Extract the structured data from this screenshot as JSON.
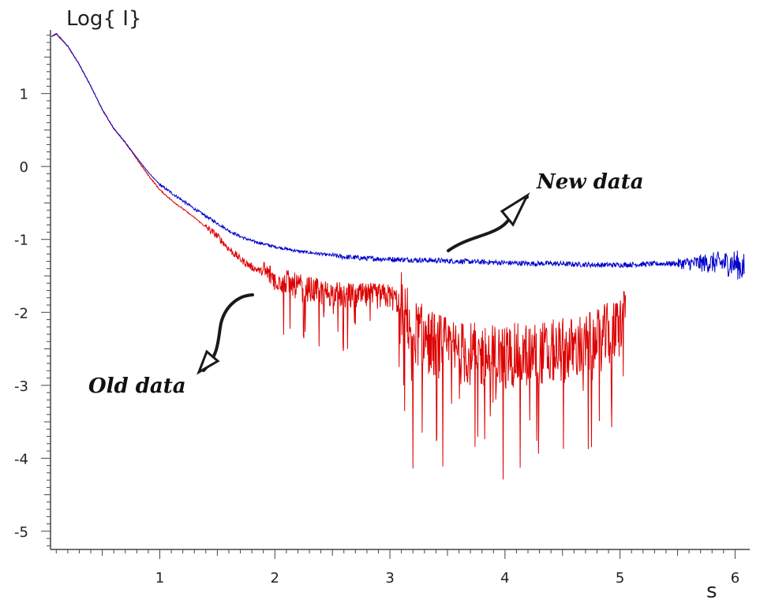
{
  "chart_data": {
    "type": "line",
    "ylabel": "Log{ I}",
    "xlabel": "s",
    "xlim": [
      0.05,
      6.1
    ],
    "ylim": [
      -5.25,
      1.85
    ],
    "x_ticks": [
      1,
      2,
      3,
      4,
      5,
      6
    ],
    "y_ticks": [
      1,
      0,
      -1,
      -2,
      -3,
      -4,
      -5
    ],
    "grid": false,
    "series": [
      {
        "name": "New data",
        "color": "#0000cc",
        "x": [
          0.06,
          0.1,
          0.2,
          0.3,
          0.4,
          0.5,
          0.6,
          0.7,
          0.8,
          0.9,
          1.0,
          1.1,
          1.2,
          1.3,
          1.4,
          1.5,
          1.6,
          1.7,
          1.8,
          2.0,
          2.2,
          2.4,
          2.6,
          2.8,
          3.0,
          3.2,
          3.4,
          3.6,
          3.8,
          4.0,
          4.2,
          4.4,
          4.6,
          4.8,
          5.0,
          5.2,
          5.4,
          5.6,
          5.8,
          6.0,
          6.08
        ],
        "y": [
          1.78,
          1.82,
          1.65,
          1.4,
          1.1,
          0.78,
          0.52,
          0.33,
          0.12,
          -0.08,
          -0.25,
          -0.36,
          -0.47,
          -0.58,
          -0.68,
          -0.78,
          -0.88,
          -0.96,
          -1.02,
          -1.1,
          -1.16,
          -1.2,
          -1.24,
          -1.26,
          -1.27,
          -1.28,
          -1.29,
          -1.3,
          -1.31,
          -1.32,
          -1.33,
          -1.33,
          -1.34,
          -1.35,
          -1.35,
          -1.34,
          -1.33,
          -1.33,
          -1.32,
          -1.33,
          -1.4
        ]
      },
      {
        "name": "Old data",
        "color": "#dd0000",
        "x": [
          0.06,
          0.1,
          0.2,
          0.3,
          0.4,
          0.5,
          0.6,
          0.7,
          0.8,
          0.9,
          1.0,
          1.1,
          1.2,
          1.3,
          1.4,
          1.5,
          1.6,
          1.7,
          1.8,
          2.0,
          2.2,
          2.4,
          2.6,
          2.8,
          3.0,
          3.1,
          3.2,
          3.4,
          3.6,
          3.8,
          4.0,
          4.2,
          4.4,
          4.6,
          4.8,
          5.0,
          5.05
        ],
        "y": [
          1.78,
          1.82,
          1.65,
          1.4,
          1.1,
          0.78,
          0.52,
          0.33,
          0.1,
          -0.12,
          -0.32,
          -0.46,
          -0.58,
          -0.7,
          -0.83,
          -0.95,
          -1.13,
          -1.27,
          -1.38,
          -1.52,
          -1.65,
          -1.72,
          -1.77,
          -1.78,
          -1.78,
          -1.88,
          -2.25,
          -2.45,
          -2.55,
          -2.6,
          -2.6,
          -2.58,
          -2.55,
          -2.5,
          -2.4,
          -2.2,
          -1.75
        ]
      }
    ],
    "annotations": [
      {
        "text": "New data",
        "x": 4.3,
        "y": -0.22
      },
      {
        "text": "Old data",
        "x": 0.35,
        "y": -2.96
      }
    ]
  }
}
